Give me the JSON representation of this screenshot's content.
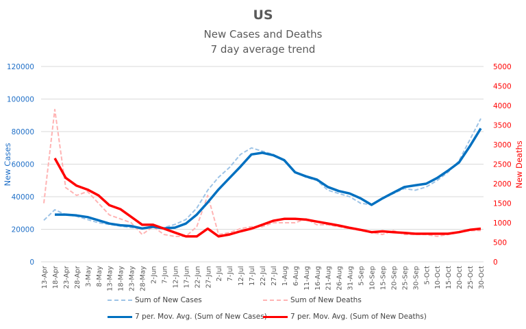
{
  "chart_data": {
    "type": "line",
    "title": "US",
    "subtitle": [
      "New Cases and Deaths",
      "7 day average trend"
    ],
    "xlabel": "",
    "ylabel": "New Cases",
    "y2label": "New Deaths",
    "ylim": [
      0,
      120000
    ],
    "y2lim": [
      0,
      5000
    ],
    "yticks": [
      0,
      20000,
      40000,
      60000,
      80000,
      100000,
      120000
    ],
    "y2ticks": [
      0,
      500,
      1000,
      1500,
      2000,
      2500,
      3000,
      3500,
      4000,
      4500,
      5000
    ],
    "grid": true,
    "legend_position": "bottom",
    "x": [
      "13-Apr",
      "18-Apr",
      "23-Apr",
      "28-Apr",
      "3-May",
      "8-May",
      "13-May",
      "18-May",
      "23-May",
      "28-May",
      "2-Jun",
      "7-Jun",
      "12-Jun",
      "17-Jun",
      "22-Jun",
      "27-Jun",
      "2-Jul",
      "7-Jul",
      "12-Jul",
      "17-Jul",
      "22-Jul",
      "27-Jul",
      "1-Aug",
      "6-Aug",
      "11-Aug",
      "16-Aug",
      "21-Aug",
      "26-Aug",
      "31-Aug",
      "5-Sep",
      "10-Sep",
      "15-Sep",
      "20-Sep",
      "25-Sep",
      "30-Sep",
      "5-Oct",
      "10-Oct",
      "15-Oct",
      "20-Oct",
      "25-Oct",
      "30-Oct"
    ],
    "series": [
      {
        "name": "Sum of New Cases",
        "axis": "left",
        "style": "dashed",
        "color": "#9dc3e6",
        "values": [
          25500,
          32000,
          29000,
          28000,
          26000,
          24000,
          23000,
          22000,
          21000,
          20500,
          22000,
          21000,
          23000,
          26000,
          33000,
          44000,
          52000,
          58000,
          66000,
          70000,
          68000,
          66000,
          62000,
          55000,
          52000,
          50000,
          44000,
          42000,
          40000,
          36000,
          35000,
          39000,
          42000,
          45000,
          44000,
          46000,
          50000,
          55000,
          62000,
          75000,
          88000
        ]
      },
      {
        "name": "Sum of New Deaths",
        "axis": "right",
        "style": "dashed",
        "color": "#ffb3b3",
        "values": [
          1500,
          3900,
          1900,
          1700,
          1800,
          1500,
          1200,
          1100,
          1000,
          700,
          900,
          700,
          650,
          650,
          900,
          1700,
          700,
          750,
          850,
          900,
          900,
          1000,
          1000,
          1000,
          1100,
          950,
          950,
          900,
          850,
          800,
          750,
          700,
          800,
          700,
          700,
          700,
          650,
          700,
          750,
          800,
          800
        ]
      },
      {
        "name": "7 per. Mov. Avg. (Sum of New Cases)",
        "axis": "left",
        "style": "solid",
        "color": "#0070c0",
        "values": [
          null,
          29000,
          29000,
          28500,
          27500,
          25500,
          23500,
          22500,
          22000,
          20500,
          21500,
          20500,
          21000,
          23500,
          29000,
          36500,
          44500,
          51500,
          58500,
          66000,
          67000,
          65500,
          62500,
          55000,
          52500,
          50500,
          46000,
          43500,
          42000,
          39000,
          35000,
          39000,
          42500,
          46000,
          47000,
          48000,
          51500,
          56000,
          61000,
          71000,
          82000
        ]
      },
      {
        "name": "7 per. Mov. Avg. (Sum of New Deaths)",
        "axis": "right",
        "style": "solid",
        "color": "#ff0000",
        "values": [
          null,
          2650,
          2150,
          1950,
          1850,
          1700,
          1450,
          1350,
          1150,
          950,
          950,
          850,
          750,
          650,
          650,
          850,
          650,
          700,
          780,
          850,
          950,
          1050,
          1100,
          1100,
          1080,
          1030,
          980,
          930,
          870,
          820,
          760,
          780,
          760,
          740,
          720,
          720,
          720,
          720,
          760,
          820,
          850
        ]
      }
    ]
  },
  "legend": {
    "cases": "Sum of New Cases",
    "deaths": "Sum of New Deaths",
    "cases_avg": "7 per. Mov. Avg. (Sum of New Cases)",
    "deaths_avg": "7 per. Mov. Avg. (Sum of New Deaths)"
  }
}
